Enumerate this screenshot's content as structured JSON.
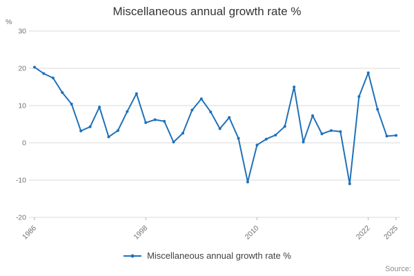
{
  "title": "Miscellaneous annual growth rate %",
  "y_axis_unit": "%",
  "source_label": "Source:",
  "legend": {
    "label": "Miscellaneous annual growth rate %"
  },
  "colors": {
    "line": "#1d70b8",
    "grid": "#d9d9d9",
    "axis_tick": "#b3b3b3",
    "tick_text": "#707071",
    "title_text": "#333333"
  },
  "chart_data": {
    "type": "line",
    "title": "Miscellaneous annual growth rate %",
    "xlabel": "",
    "ylabel": "%",
    "ylim": [
      -20,
      30
    ],
    "y_ticks": [
      30,
      20,
      10,
      0,
      -10,
      -20
    ],
    "x_tick_labels": [
      "1986",
      "1998",
      "2010",
      "2022",
      "2025"
    ],
    "x_tick_years": [
      1986,
      1998,
      2010,
      2022,
      2025
    ],
    "grid": true,
    "legend_position": "bottom",
    "x": [
      1986,
      1987,
      1988,
      1989,
      1990,
      1991,
      1992,
      1993,
      1994,
      1995,
      1996,
      1997,
      1998,
      1999,
      2000,
      2001,
      2002,
      2003,
      2004,
      2005,
      2006,
      2007,
      2008,
      2009,
      2010,
      2011,
      2012,
      2013,
      2014,
      2015,
      2016,
      2017,
      2018,
      2019,
      2020,
      2021,
      2022,
      2023,
      2024,
      2025
    ],
    "series": [
      {
        "name": "Miscellaneous annual growth rate %",
        "values": [
          20.3,
          18.6,
          17.4,
          13.5,
          10.4,
          3.2,
          4.3,
          9.6,
          1.6,
          3.3,
          8.4,
          13.2,
          5.4,
          6.2,
          5.8,
          0.2,
          2.6,
          8.8,
          11.8,
          8.3,
          3.8,
          6.8,
          1.2,
          -10.5,
          -0.6,
          1.0,
          2.1,
          4.4,
          15.0,
          0.2,
          7.3,
          2.4,
          3.3,
          3.0,
          -11.0,
          12.4,
          18.8,
          9.0,
          1.8,
          2.0
        ]
      }
    ]
  }
}
